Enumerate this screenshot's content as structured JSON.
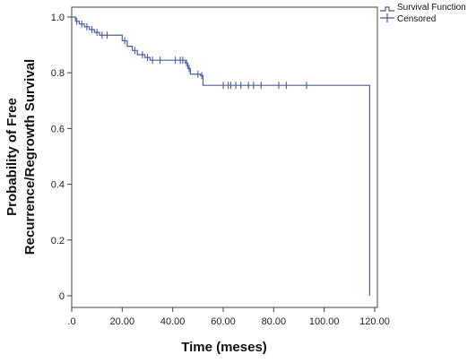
{
  "chart_data": {
    "type": "line",
    "xlabel": "Time (meses)",
    "ylabel_lines": [
      "Probability  of Free",
      "Recurrence/Regrowth  Survival"
    ],
    "xlim": [
      0,
      120
    ],
    "ylim": [
      0,
      1.0
    ],
    "x_ticks": [
      0,
      20,
      40,
      60,
      80,
      100,
      120
    ],
    "x_tick_labels": [
      ".0",
      "20.00",
      "40.00",
      "60.00",
      "80.00",
      "100.00",
      "120.00"
    ],
    "y_ticks": [
      0,
      0.2,
      0.4,
      0.6,
      0.8,
      1.0
    ],
    "y_tick_labels": [
      "0",
      "0.2",
      "0.4",
      "0.6",
      "0.8",
      "1.0"
    ],
    "grid": false,
    "legend_position": "top-right",
    "legend": [
      {
        "label": "Survival Function",
        "marker": "step-line"
      },
      {
        "label": "Censored",
        "marker": "plus"
      }
    ],
    "line_color": "#4a5ea8",
    "series": [
      {
        "kind": "step",
        "x": [
          0,
          1.5,
          3,
          5,
          7,
          9,
          11,
          20,
          22,
          24,
          26,
          29,
          31,
          45,
          46,
          47,
          51,
          52,
          118,
          118
        ],
        "y": [
          1.0,
          0.985,
          0.975,
          0.965,
          0.955,
          0.945,
          0.935,
          0.915,
          0.895,
          0.88,
          0.865,
          0.855,
          0.845,
          0.835,
          0.815,
          0.795,
          0.79,
          0.755,
          0.755,
          0.0
        ]
      }
    ],
    "censored": [
      {
        "x": 2,
        "y": 0.985
      },
      {
        "x": 4,
        "y": 0.975
      },
      {
        "x": 6,
        "y": 0.965
      },
      {
        "x": 8,
        "y": 0.955
      },
      {
        "x": 10,
        "y": 0.945
      },
      {
        "x": 12,
        "y": 0.935
      },
      {
        "x": 14,
        "y": 0.935
      },
      {
        "x": 21,
        "y": 0.915
      },
      {
        "x": 25,
        "y": 0.88
      },
      {
        "x": 28,
        "y": 0.865
      },
      {
        "x": 30,
        "y": 0.855
      },
      {
        "x": 32,
        "y": 0.845
      },
      {
        "x": 35,
        "y": 0.845
      },
      {
        "x": 41,
        "y": 0.845
      },
      {
        "x": 43,
        "y": 0.845
      },
      {
        "x": 44,
        "y": 0.845
      },
      {
        "x": 45.5,
        "y": 0.835
      },
      {
        "x": 46.5,
        "y": 0.815
      },
      {
        "x": 50,
        "y": 0.795
      },
      {
        "x": 51.5,
        "y": 0.79
      },
      {
        "x": 60,
        "y": 0.755
      },
      {
        "x": 62,
        "y": 0.755
      },
      {
        "x": 63,
        "y": 0.755
      },
      {
        "x": 65,
        "y": 0.755
      },
      {
        "x": 67,
        "y": 0.755
      },
      {
        "x": 70,
        "y": 0.755
      },
      {
        "x": 72,
        "y": 0.755
      },
      {
        "x": 75,
        "y": 0.755
      },
      {
        "x": 82,
        "y": 0.755
      },
      {
        "x": 85,
        "y": 0.755
      },
      {
        "x": 93,
        "y": 0.755
      }
    ]
  }
}
